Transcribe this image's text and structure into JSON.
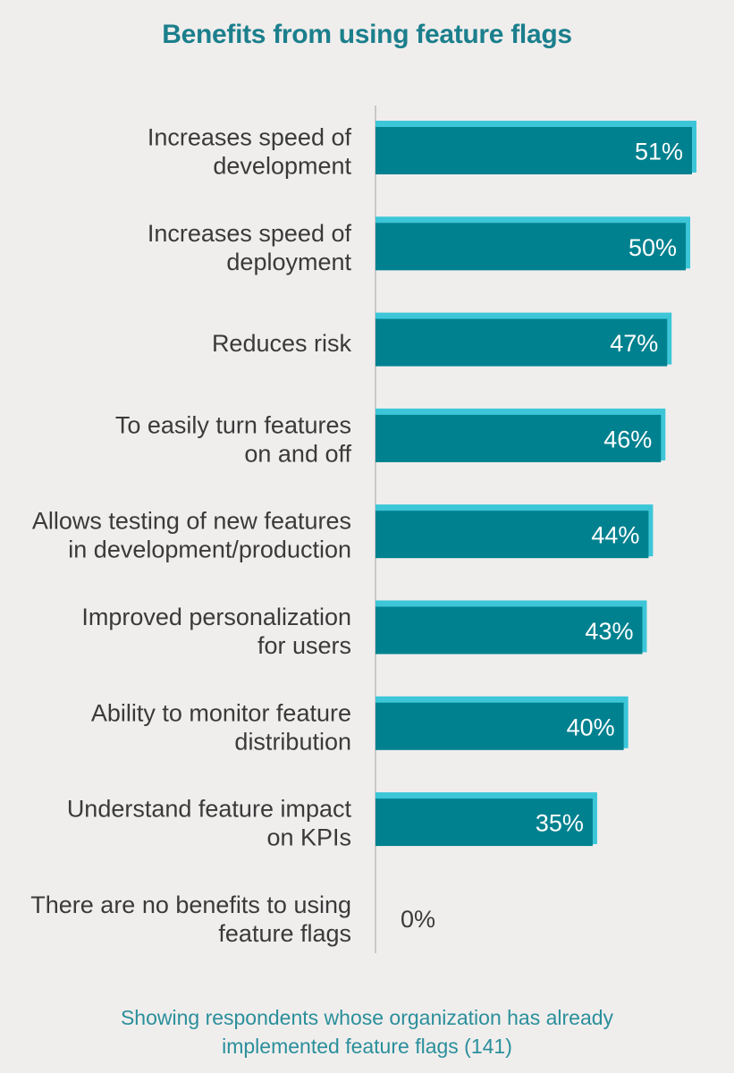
{
  "chart_data": {
    "type": "bar",
    "orientation": "horizontal",
    "title": "Benefits from using feature flags",
    "categories": [
      [
        "Increases speed of",
        "development"
      ],
      [
        "Increases speed of",
        "deployment"
      ],
      [
        "Reduces risk"
      ],
      [
        "To easily turn features",
        "on and off"
      ],
      [
        "Allows testing of new features",
        "in development/production"
      ],
      [
        "Improved personalization",
        "for users"
      ],
      [
        "Ability to monitor feature",
        "distribution"
      ],
      [
        "Understand feature impact",
        "on KPIs"
      ],
      [
        "There are no benefits to using",
        "feature flags"
      ]
    ],
    "values": [
      51,
      50,
      47,
      46,
      44,
      43,
      40,
      35,
      0
    ],
    "value_labels": [
      "51%",
      "50%",
      "47%",
      "46%",
      "44%",
      "43%",
      "40%",
      "35%",
      "0%"
    ],
    "xlim": [
      0,
      51
    ],
    "grid": false,
    "colors": {
      "bar": "#00818f",
      "bar_shadow": "#3cc6d8",
      "axis": "#c9c9c9"
    }
  },
  "footnote": {
    "line1": "Showing respondents whose organization has already",
    "line2": "implemented feature flags (141)"
  }
}
